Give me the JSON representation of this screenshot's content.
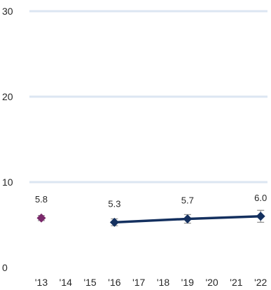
{
  "chart_data": {
    "type": "line",
    "x": [
      "'13",
      "'14",
      "'15",
      "'16",
      "'17",
      "'18",
      "'19",
      "'20",
      "'21",
      "'22"
    ],
    "ylim": [
      0,
      30
    ],
    "yticks": [
      0,
      10,
      20,
      30
    ],
    "grid": true,
    "series": [
      {
        "role": "separate-point",
        "color": "#7b2a6b",
        "values": [
          5.8,
          null,
          null,
          null,
          null,
          null,
          null,
          null,
          null,
          null
        ],
        "errors": [
          0.3,
          null,
          null,
          null,
          null,
          null,
          null,
          null,
          null,
          null
        ],
        "labels": [
          "5.8",
          "",
          "",
          "",
          "",
          "",
          "",
          "",
          "",
          ""
        ]
      },
      {
        "role": "trend-line",
        "color": "#14305f",
        "values": [
          null,
          null,
          null,
          5.3,
          null,
          null,
          5.7,
          null,
          null,
          6.0
        ],
        "errors": [
          null,
          null,
          null,
          0.4,
          null,
          null,
          0.5,
          null,
          null,
          0.7
        ],
        "labels": [
          "",
          "",
          "",
          "5.3",
          "",
          "",
          "5.7",
          "",
          "",
          "6.0"
        ]
      }
    ]
  },
  "colors": {
    "gridline": "#dce6f2",
    "axis_text": "#262626",
    "error_bar": "#8c8c8c"
  }
}
